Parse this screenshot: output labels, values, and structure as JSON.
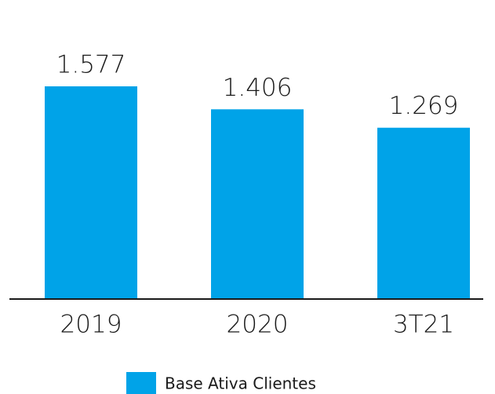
{
  "chart_data": {
    "type": "bar",
    "categories": [
      "2019",
      "2020",
      "3T21"
    ],
    "series": [
      {
        "name": "Base Ativa Clientes",
        "color": "#00a3e8",
        "values": [
          1577,
          1406,
          1269
        ],
        "value_labels": [
          "1.577",
          "1.406",
          "1.269"
        ]
      }
    ]
  }
}
